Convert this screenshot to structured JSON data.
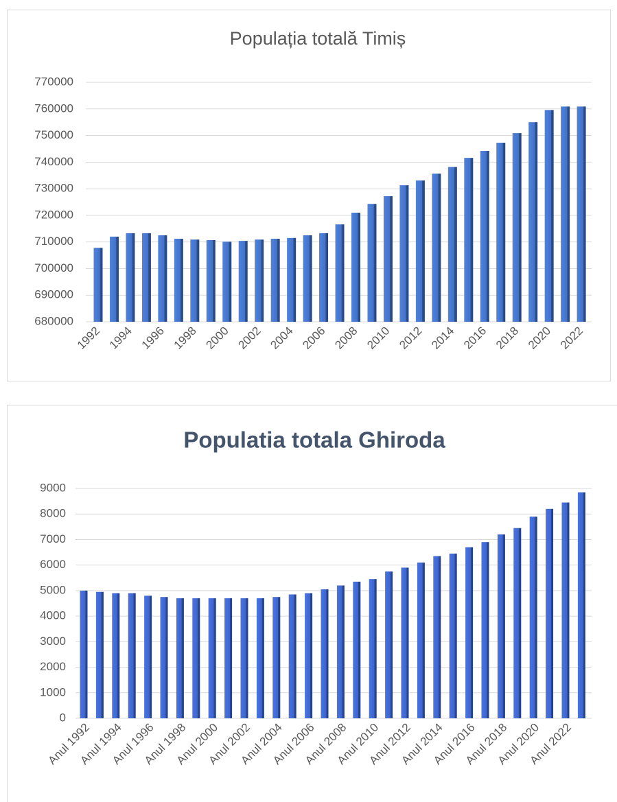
{
  "chart_data": [
    {
      "type": "bar",
      "title": "Populația totală Timiș",
      "categories": [
        "1992",
        null,
        "1994",
        null,
        "1996",
        null,
        "1998",
        null,
        "2000",
        null,
        "2002",
        null,
        "2004",
        null,
        "2006",
        null,
        "2008",
        null,
        "2010",
        null,
        "2012",
        null,
        "2014",
        null,
        "2016",
        null,
        "2018",
        null,
        "2020",
        null,
        "2022"
      ],
      "values": [
        707800,
        712000,
        713300,
        713300,
        712500,
        711200,
        710900,
        710700,
        710100,
        710400,
        710900,
        711200,
        711500,
        712500,
        713300,
        716600,
        721000,
        724300,
        727200,
        731300,
        733100,
        735700,
        738200,
        741600,
        744200,
        747300,
        750900,
        755000,
        759600,
        760900,
        760900
      ],
      "color": "#4472c4",
      "ylim": [
        680000,
        770000
      ],
      "yticks": [
        680000,
        690000,
        700000,
        710000,
        720000,
        730000,
        740000,
        750000,
        760000,
        770000
      ],
      "grid": true
    },
    {
      "type": "bar",
      "title": "Populatia totala Ghiroda",
      "categories": [
        "Anul 1992",
        null,
        "Anul 1994",
        null,
        "Anul 1996",
        null,
        "Anul 1998",
        null,
        "Anul 2000",
        null,
        "Anul 2002",
        null,
        "Anul 2004",
        null,
        "Anul 2006",
        null,
        "Anul 2008",
        null,
        "Anul 2010",
        null,
        "Anul 2012",
        null,
        "Anul 2014",
        null,
        "Anul 2016",
        null,
        "Anul 2018",
        null,
        "Anul 2020",
        null,
        "Anul 2022",
        null
      ],
      "values": [
        5000,
        4950,
        4900,
        4900,
        4800,
        4750,
        4700,
        4700,
        4700,
        4700,
        4700,
        4700,
        4750,
        4850,
        4900,
        5050,
        5200,
        5350,
        5450,
        5750,
        5900,
        6100,
        6350,
        6450,
        6700,
        6900,
        7200,
        7450,
        7900,
        8200,
        8450,
        8850
      ],
      "color": "#3f65c9",
      "ylim": [
        0,
        9000
      ],
      "yticks": [
        0,
        1000,
        2000,
        3000,
        4000,
        5000,
        6000,
        7000,
        8000,
        9000
      ],
      "grid": true
    }
  ]
}
